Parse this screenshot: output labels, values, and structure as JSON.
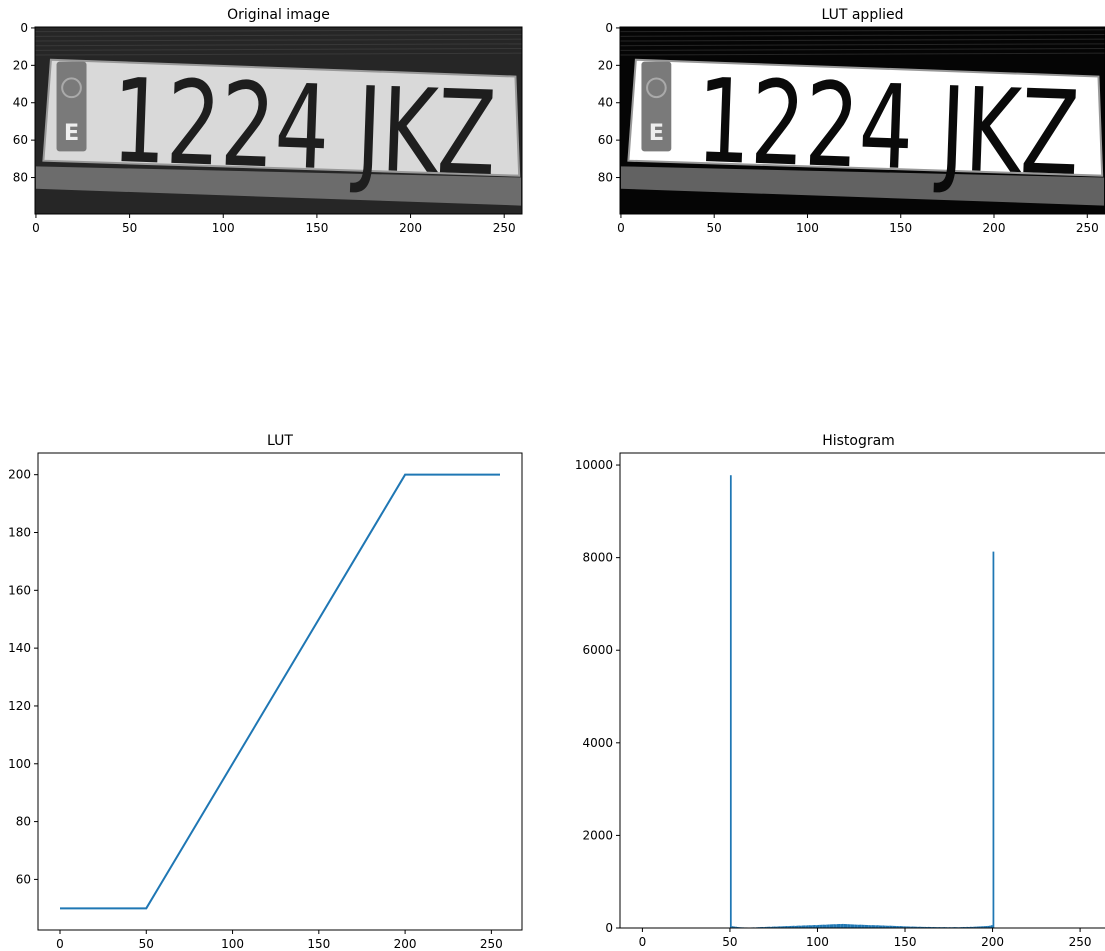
{
  "chart_data": [
    {
      "type": "image",
      "title": "Original image",
      "xlim": [
        -0.5,
        259.5
      ],
      "ylim": [
        99.5,
        -0.5
      ],
      "xticks": [
        0,
        50,
        100,
        150,
        200,
        250
      ],
      "yticks": [
        0,
        20,
        40,
        60,
        80
      ],
      "plate_text": "1224 JKZ",
      "badge_text": "E",
      "background": "#262626",
      "plate_color": "#d9d9d9",
      "ink_color": "#1e1e1e"
    },
    {
      "type": "image",
      "title": "LUT applied",
      "xlim": [
        -0.5,
        259.5
      ],
      "ylim": [
        99.5,
        -0.5
      ],
      "xticks": [
        0,
        50,
        100,
        150,
        200,
        250
      ],
      "yticks": [
        0,
        20,
        40,
        60,
        80
      ],
      "plate_text": "1224 JKZ",
      "badge_text": "E",
      "background": "#050505",
      "plate_color": "#ffffff",
      "ink_color": "#0a0a0a"
    },
    {
      "type": "line",
      "title": "LUT",
      "x": [
        0,
        50,
        200,
        255
      ],
      "values": [
        50,
        50,
        200,
        200
      ],
      "color": "#1f77b4",
      "xlim": [
        -12.75,
        267.75
      ],
      "ylim": [
        42.5,
        207.5
      ],
      "xticks": [
        0,
        50,
        100,
        150,
        200,
        250
      ],
      "yticks": [
        60,
        80,
        100,
        120,
        140,
        160,
        180,
        200
      ]
    },
    {
      "type": "histogram",
      "title": "Histogram",
      "color": "#1f77b4",
      "xlim": [
        -12.8,
        268.8
      ],
      "ylim": [
        0,
        10260
      ],
      "xticks": [
        0,
        50,
        100,
        150,
        200,
        250
      ],
      "yticks": [
        0,
        2000,
        4000,
        6000,
        8000,
        10000
      ],
      "bins": [
        0,
        1,
        2,
        3,
        4,
        5,
        6,
        7,
        8,
        9,
        10,
        11,
        12,
        13,
        14,
        15,
        16,
        17,
        18,
        19,
        20,
        21,
        22,
        23,
        24,
        25,
        26,
        27,
        28,
        29,
        30,
        31,
        32,
        33,
        34,
        35,
        36,
        37,
        38,
        39,
        40,
        41,
        42,
        43,
        44,
        45,
        46,
        47,
        48,
        49,
        50,
        51,
        52,
        53,
        54,
        55,
        56,
        57,
        58,
        59,
        60,
        61,
        62,
        63,
        64,
        65,
        66,
        67,
        68,
        69,
        70,
        71,
        72,
        73,
        74,
        75,
        76,
        77,
        78,
        79,
        80,
        81,
        82,
        83,
        84,
        85,
        86,
        87,
        88,
        89,
        90,
        91,
        92,
        93,
        94,
        95,
        96,
        97,
        98,
        99,
        100,
        101,
        102,
        103,
        104,
        105,
        106,
        107,
        108,
        109,
        110,
        111,
        112,
        113,
        114,
        115,
        116,
        117,
        118,
        119,
        120,
        121,
        122,
        123,
        124,
        125,
        126,
        127,
        128,
        129,
        130,
        131,
        132,
        133,
        134,
        135,
        136,
        137,
        138,
        139,
        140,
        141,
        142,
        143,
        144,
        145,
        146,
        147,
        148,
        149,
        150,
        151,
        152,
        153,
        154,
        155,
        156,
        157,
        158,
        159,
        160,
        161,
        162,
        163,
        164,
        165,
        166,
        167,
        168,
        169,
        170,
        171,
        172,
        173,
        174,
        175,
        176,
        177,
        178,
        179,
        180,
        181,
        182,
        183,
        184,
        185,
        186,
        187,
        188,
        189,
        190,
        191,
        192,
        193,
        194,
        195,
        196,
        197,
        198,
        199,
        200,
        201,
        202,
        203,
        204,
        205,
        206,
        207,
        208,
        209,
        210,
        211,
        212,
        213,
        214,
        215,
        216,
        217,
        218,
        219,
        220,
        221,
        222,
        223,
        224,
        225,
        226,
        227,
        228,
        229,
        230,
        231,
        232,
        233,
        234,
        235,
        236,
        237,
        238,
        239,
        240,
        241,
        242,
        243,
        244,
        245,
        246,
        247,
        248,
        249,
        250,
        251,
        252,
        253,
        254,
        255,
        256
      ],
      "values": [
        0,
        0,
        0,
        0,
        0,
        0,
        0,
        0,
        0,
        0,
        0,
        0,
        0,
        0,
        0,
        0,
        0,
        0,
        0,
        0,
        0,
        0,
        0,
        0,
        0,
        0,
        0,
        0,
        0,
        0,
        0,
        0,
        0,
        0,
        0,
        0,
        0,
        0,
        0,
        0,
        0,
        0,
        0,
        0,
        0,
        0,
        0,
        0,
        0,
        0,
        9780,
        38,
        32,
        28,
        22,
        18,
        15,
        14,
        12,
        12,
        10,
        10,
        12,
        14,
        12,
        16,
        18,
        20,
        22,
        20,
        24,
        26,
        28,
        25,
        30,
        32,
        30,
        34,
        36,
        35,
        38,
        40,
        42,
        40,
        44,
        46,
        48,
        45,
        50,
        52,
        50,
        54,
        56,
        55,
        58,
        60,
        58,
        62,
        64,
        60,
        66,
        68,
        70,
        72,
        70,
        74,
        76,
        78,
        80,
        82,
        80,
        84,
        86,
        85,
        88,
        86,
        84,
        82,
        80,
        78,
        76,
        74,
        72,
        70,
        72,
        70,
        68,
        66,
        64,
        62,
        60,
        62,
        60,
        58,
        60,
        56,
        54,
        55,
        52,
        50,
        48,
        50,
        48,
        46,
        44,
        42,
        40,
        42,
        38,
        36,
        35,
        34,
        32,
        30,
        32,
        30,
        28,
        26,
        28,
        25,
        24,
        24,
        22,
        24,
        22,
        20,
        22,
        20,
        18,
        20,
        18,
        18,
        20,
        18,
        16,
        18,
        16,
        18,
        20,
        18,
        16,
        18,
        20,
        22,
        20,
        24,
        22,
        26,
        24,
        28,
        30,
        32,
        34,
        36,
        38,
        40,
        42,
        45,
        50,
        60,
        8130,
        0,
        0,
        0,
        0,
        0,
        0,
        0,
        0,
        0,
        0,
        0,
        0,
        0,
        0,
        0,
        0,
        0,
        0,
        0,
        0,
        0,
        0,
        0,
        0,
        0,
        0,
        0,
        0,
        0,
        0,
        0,
        0,
        0,
        0,
        0,
        0,
        0,
        0,
        0,
        0,
        0,
        0,
        0,
        0,
        0,
        0,
        0,
        0,
        0,
        0,
        0,
        0,
        0,
        0,
        0
      ]
    }
  ]
}
